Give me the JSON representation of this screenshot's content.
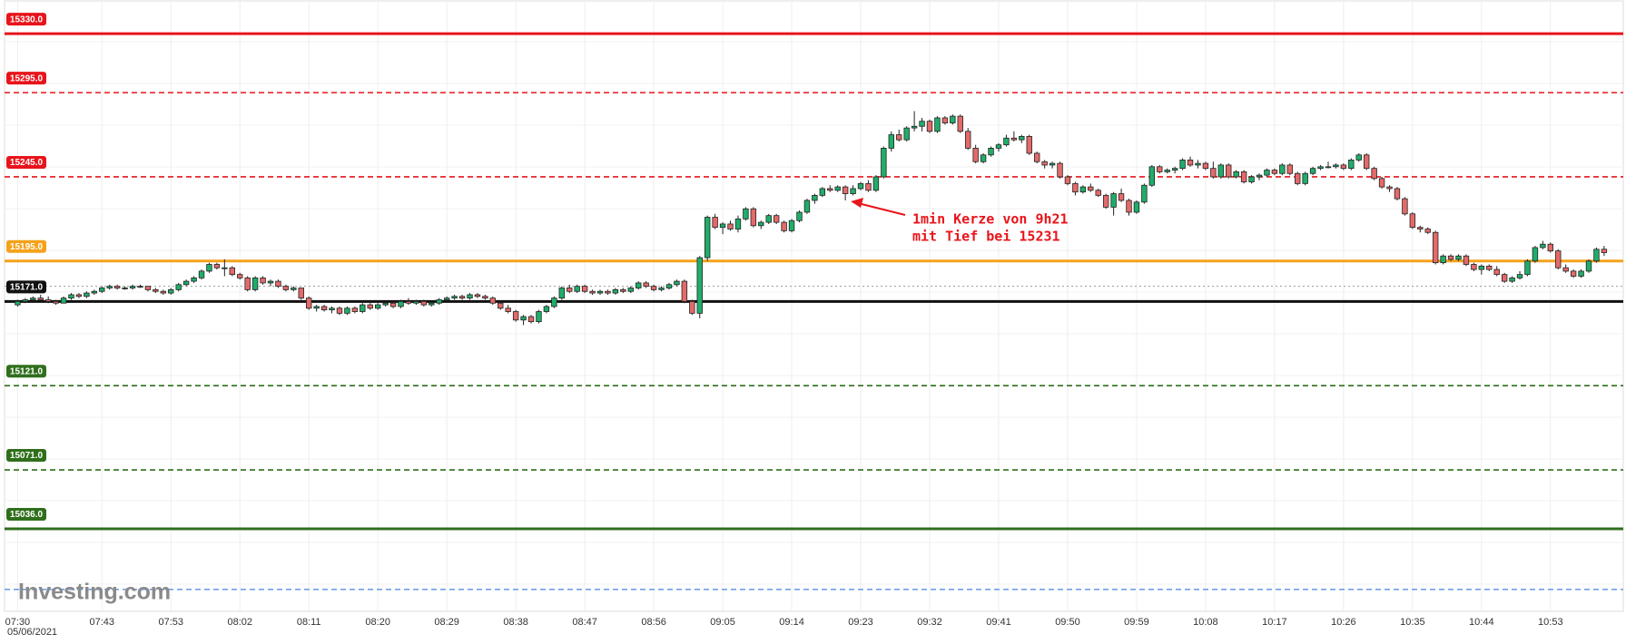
{
  "chart_data": {
    "type": "candlestick",
    "date": "05/06/2021",
    "logo": "Investing.com",
    "annotation": [
      "1min Kerze von 9h21",
      "mit Tief bei 15231"
    ],
    "up_color": "#1fae6a",
    "down_color": "#e46a6a",
    "ylim": [
      14987,
      15350
    ],
    "xlim": [
      -2.3,
      209.5
    ],
    "xticks": [
      {
        "value": 0,
        "label": "07:30"
      },
      {
        "value": 11,
        "label": "07:43"
      },
      {
        "value": 20,
        "label": "07:53"
      },
      {
        "value": 29,
        "label": "08:02"
      },
      {
        "value": 38,
        "label": "08:11"
      },
      {
        "value": 47,
        "label": "08:20"
      },
      {
        "value": 56,
        "label": "08:29"
      },
      {
        "value": 65,
        "label": "08:38"
      },
      {
        "value": 74,
        "label": "08:47"
      },
      {
        "value": 83,
        "label": "08:56"
      },
      {
        "value": 92,
        "label": "09:05"
      },
      {
        "value": 101,
        "label": "09:14"
      },
      {
        "value": 110,
        "label": "09:23"
      },
      {
        "value": 119,
        "label": "09:32"
      },
      {
        "value": 128,
        "label": "09:41"
      },
      {
        "value": 137,
        "label": "09:50"
      },
      {
        "value": 146,
        "label": "09:59"
      },
      {
        "value": 155,
        "label": "10:08"
      },
      {
        "value": 164,
        "label": "10:17"
      },
      {
        "value": 173,
        "label": "10:26"
      },
      {
        "value": 182,
        "label": "10:35"
      },
      {
        "value": 191,
        "label": "10:44"
      },
      {
        "value": 200,
        "label": "10:53"
      }
    ],
    "levels": [
      {
        "value": 15330,
        "label": "15330.0",
        "color": "#e8141b",
        "style": "solid"
      },
      {
        "value": 15295,
        "label": "15295.0",
        "color": "#e8141b",
        "style": "dashed"
      },
      {
        "value": 15245,
        "label": "15245.0",
        "color": "#e8141b",
        "style": "dashed"
      },
      {
        "value": 15195,
        "label": "15195.0",
        "color": "#f5a21b",
        "style": "solid"
      },
      {
        "value": 15180,
        "color": "#999999",
        "style": "dotted"
      },
      {
        "value": 15171,
        "label": "15171.0",
        "color": "#111111",
        "style": "solid"
      },
      {
        "value": 15121,
        "label": "15121.0",
        "color": "#2f6f1c",
        "style": "dashed"
      },
      {
        "value": 15071,
        "label": "15071.0",
        "color": "#2f6f1c",
        "style": "dashed"
      },
      {
        "value": 15036,
        "label": "15036.0",
        "color": "#2f6f1c",
        "style": "solid"
      },
      {
        "value": 15000,
        "color": "#6fa0e8",
        "style": "dashed"
      }
    ],
    "candles": [
      [
        15169,
        15172,
        15168,
        15171
      ],
      [
        15171,
        15173,
        15170,
        15172
      ],
      [
        15172,
        15174,
        15171,
        15173
      ],
      [
        15173,
        15175,
        15172,
        15172
      ],
      [
        15172,
        15174,
        15170,
        15171
      ],
      [
        15171,
        15172,
        15169,
        15170
      ],
      [
        15170,
        15174,
        15170,
        15173
      ],
      [
        15173,
        15176,
        15172,
        15175
      ],
      [
        15175,
        15176,
        15173,
        15174
      ],
      [
        15174,
        15177,
        15173,
        15176
      ],
      [
        15176,
        15178,
        15175,
        15177
      ],
      [
        15177,
        15180,
        15176,
        15179
      ],
      [
        15179,
        15181,
        15178,
        15180
      ],
      [
        15180,
        15181,
        15178,
        15179
      ],
      [
        15179,
        15180,
        15178,
        15179
      ],
      [
        15179,
        15181,
        15178,
        15180
      ],
      [
        15180,
        15181,
        15179,
        15180
      ],
      [
        15180,
        15180,
        15177,
        15178
      ],
      [
        15178,
        15179,
        15176,
        15177
      ],
      [
        15177,
        15178,
        15175,
        15176
      ],
      [
        15176,
        15179,
        15175,
        15178
      ],
      [
        15178,
        15182,
        15177,
        15181
      ],
      [
        15181,
        15184,
        15180,
        15183
      ],
      [
        15183,
        15186,
        15182,
        15185
      ],
      [
        15185,
        15190,
        15184,
        15189
      ],
      [
        15189,
        15194,
        15188,
        15193
      ],
      [
        15193,
        15194,
        15190,
        15191
      ],
      [
        15191,
        15196,
        15186,
        15191
      ],
      [
        15191,
        15192,
        15186,
        15187
      ],
      [
        15187,
        15188,
        15184,
        15185
      ],
      [
        15185,
        15186,
        15177,
        15178
      ],
      [
        15178,
        15186,
        15177,
        15185
      ],
      [
        15185,
        15186,
        15181,
        15182
      ],
      [
        15182,
        15184,
        15180,
        15183
      ],
      [
        15183,
        15184,
        15179,
        15180
      ],
      [
        15180,
        15181,
        15177,
        15178
      ],
      [
        15178,
        15180,
        15177,
        15179
      ],
      [
        15179,
        15179,
        15172,
        15173
      ],
      [
        15173,
        15174,
        15166,
        15167
      ],
      [
        15167,
        15169,
        15165,
        15168
      ],
      [
        15168,
        15169,
        15165,
        15166
      ],
      [
        15166,
        15168,
        15164,
        15167
      ],
      [
        15167,
        15168,
        15163,
        15164
      ],
      [
        15164,
        15168,
        15163,
        15167
      ],
      [
        15167,
        15168,
        15164,
        15165
      ],
      [
        15165,
        15170,
        15164,
        15169
      ],
      [
        15169,
        15170,
        15166,
        15167
      ],
      [
        15167,
        15170,
        15166,
        15169
      ],
      [
        15169,
        15171,
        15168,
        15170
      ],
      [
        15170,
        15171,
        15167,
        15168
      ],
      [
        15168,
        15172,
        15167,
        15171
      ],
      [
        15171,
        15173,
        15169,
        15170
      ],
      [
        15170,
        15172,
        15169,
        15171
      ],
      [
        15171,
        15172,
        15168,
        15169
      ],
      [
        15169,
        15171,
        15168,
        15170
      ],
      [
        15170,
        15173,
        15169,
        15172
      ],
      [
        15172,
        15174,
        15171,
        15173
      ],
      [
        15173,
        15175,
        15172,
        15174
      ],
      [
        15174,
        15175,
        15172,
        15173
      ],
      [
        15173,
        15176,
        15172,
        15175
      ],
      [
        15175,
        15176,
        15173,
        15174
      ],
      [
        15174,
        15175,
        15172,
        15173
      ],
      [
        15173,
        15174,
        15169,
        15170
      ],
      [
        15170,
        15171,
        15166,
        15167
      ],
      [
        15167,
        15169,
        15164,
        15165
      ],
      [
        15165,
        15166,
        15159,
        15160
      ],
      [
        15160,
        15163,
        15157,
        15162
      ],
      [
        15162,
        15163,
        15158,
        15159
      ],
      [
        15159,
        15166,
        15158,
        15165
      ],
      [
        15165,
        15169,
        15164,
        15168
      ],
      [
        15168,
        15174,
        15167,
        15173
      ],
      [
        15173,
        15180,
        15172,
        15179
      ],
      [
        15179,
        15181,
        15176,
        15177
      ],
      [
        15177,
        15181,
        15176,
        15180
      ],
      [
        15180,
        15181,
        15176,
        15177
      ],
      [
        15177,
        15178,
        15175,
        15176
      ],
      [
        15176,
        15178,
        15175,
        15177
      ],
      [
        15177,
        15178,
        15175,
        15176
      ],
      [
        15176,
        15179,
        15175,
        15178
      ],
      [
        15178,
        15179,
        15176,
        15177
      ],
      [
        15177,
        15180,
        15176,
        15179
      ],
      [
        15179,
        15183,
        15178,
        15182
      ],
      [
        15182,
        15183,
        15179,
        15180
      ],
      [
        15180,
        15181,
        15177,
        15178
      ],
      [
        15178,
        15180,
        15177,
        15179
      ],
      [
        15179,
        15182,
        15178,
        15181
      ],
      [
        15181,
        15184,
        15180,
        15183
      ],
      [
        15183,
        15184,
        15170,
        15171
      ],
      [
        15171,
        15172,
        15163,
        15164
      ],
      [
        15164,
        15198,
        15161,
        15197
      ],
      [
        15197,
        15222,
        15195,
        15221
      ],
      [
        15221,
        15223,
        15214,
        15215
      ],
      [
        15215,
        15218,
        15211,
        15217
      ],
      [
        15217,
        15219,
        15213,
        15214
      ],
      [
        15214,
        15222,
        15212,
        15220
      ],
      [
        15220,
        15227,
        15219,
        15226
      ],
      [
        15226,
        15227,
        15215,
        15216
      ],
      [
        15216,
        15219,
        15214,
        15218
      ],
      [
        15218,
        15223,
        15217,
        15222
      ],
      [
        15222,
        15223,
        15217,
        15218
      ],
      [
        15218,
        15219,
        15212,
        15213
      ],
      [
        15213,
        15220,
        15212,
        15219
      ],
      [
        15219,
        15225,
        15218,
        15224
      ],
      [
        15224,
        15232,
        15223,
        15231
      ],
      [
        15231,
        15235,
        15229,
        15234
      ],
      [
        15234,
        15239,
        15233,
        15238
      ],
      [
        15238,
        15240,
        15236,
        15237
      ],
      [
        15237,
        15240,
        15236,
        15239
      ],
      [
        15239,
        15240,
        15231,
        15235
      ],
      [
        15235,
        15240,
        15234,
        15238
      ],
      [
        15238,
        15242,
        15237,
        15241
      ],
      [
        15241,
        15243,
        15236,
        15237
      ],
      [
        15237,
        15246,
        15236,
        15245
      ],
      [
        15245,
        15263,
        15244,
        15262
      ],
      [
        15262,
        15272,
        15260,
        15270
      ],
      [
        15270,
        15273,
        15266,
        15267
      ],
      [
        15267,
        15275,
        15266,
        15274
      ],
      [
        15274,
        15284,
        15272,
        15275
      ],
      [
        15275,
        15280,
        15272,
        15278
      ],
      [
        15278,
        15279,
        15271,
        15272
      ],
      [
        15272,
        15281,
        15271,
        15280
      ],
      [
        15280,
        15281,
        15276,
        15277
      ],
      [
        15277,
        15282,
        15276,
        15281
      ],
      [
        15281,
        15282,
        15271,
        15272
      ],
      [
        15272,
        15274,
        15261,
        15262
      ],
      [
        15262,
        15264,
        15253,
        15254
      ],
      [
        15254,
        15259,
        15253,
        15258
      ],
      [
        15258,
        15263,
        15257,
        15262
      ],
      [
        15262,
        15265,
        15260,
        15264
      ],
      [
        15264,
        15270,
        15263,
        15268
      ],
      [
        15268,
        15272,
        15266,
        15267
      ],
      [
        15267,
        15270,
        15265,
        15269
      ],
      [
        15269,
        15270,
        15258,
        15259
      ],
      [
        15259,
        15260,
        15253,
        15254
      ],
      [
        15254,
        15255,
        15250,
        15252
      ],
      [
        15252,
        15254,
        15250,
        15253
      ],
      [
        15253,
        15254,
        15244,
        15245
      ],
      [
        15245,
        15246,
        15240,
        15241
      ],
      [
        15241,
        15242,
        15234,
        15236
      ],
      [
        15236,
        15240,
        15235,
        15239
      ],
      [
        15239,
        15241,
        15236,
        15237
      ],
      [
        15237,
        15238,
        15233,
        15234
      ],
      [
        15234,
        15235,
        15226,
        15227
      ],
      [
        15227,
        15236,
        15222,
        15235
      ],
      [
        15235,
        15238,
        15230,
        15231
      ],
      [
        15231,
        15232,
        15222,
        15224
      ],
      [
        15224,
        15231,
        15223,
        15230
      ],
      [
        15230,
        15241,
        15229,
        15240
      ],
      [
        15240,
        15252,
        15239,
        15251
      ],
      [
        15251,
        15252,
        15247,
        15248
      ],
      [
        15248,
        15250,
        15247,
        15249
      ],
      [
        15249,
        15251,
        15247,
        15250
      ],
      [
        15250,
        15256,
        15249,
        15255
      ],
      [
        15255,
        15257,
        15251,
        15252
      ],
      [
        15252,
        15255,
        15250,
        15253
      ],
      [
        15253,
        15254,
        15249,
        15250
      ],
      [
        15250,
        15254,
        15244,
        15245
      ],
      [
        15245,
        15253,
        15244,
        15252
      ],
      [
        15252,
        15253,
        15244,
        15245
      ],
      [
        15245,
        15249,
        15244,
        15248
      ],
      [
        15248,
        15249,
        15241,
        15242
      ],
      [
        15242,
        15246,
        15241,
        15245
      ],
      [
        15245,
        15247,
        15243,
        15246
      ],
      [
        15246,
        15250,
        15245,
        15249
      ],
      [
        15249,
        15250,
        15246,
        15247
      ],
      [
        15247,
        15253,
        15246,
        15252
      ],
      [
        15252,
        15253,
        15246,
        15247
      ],
      [
        15247,
        15248,
        15240,
        15241
      ],
      [
        15241,
        15248,
        15240,
        15247
      ],
      [
        15247,
        15251,
        15246,
        15250
      ],
      [
        15250,
        15252,
        15249,
        15251
      ],
      [
        15251,
        15254,
        15250,
        15251
      ],
      [
        15251,
        15253,
        15250,
        15252
      ],
      [
        15252,
        15253,
        15249,
        15250
      ],
      [
        15250,
        15256,
        15249,
        15255
      ],
      [
        15255,
        15259,
        15254,
        15258
      ],
      [
        15258,
        15259,
        15249,
        15250
      ],
      [
        15250,
        15251,
        15243,
        15244
      ],
      [
        15244,
        15245,
        15238,
        15239
      ],
      [
        15239,
        15240,
        15236,
        15238
      ],
      [
        15238,
        15239,
        15231,
        15232
      ],
      [
        15232,
        15233,
        15222,
        15223
      ],
      [
        15223,
        15224,
        15214,
        15215
      ],
      [
        15215,
        15216,
        15212,
        15214
      ],
      [
        15214,
        15215,
        15211,
        15212
      ],
      [
        15212,
        15213,
        15193,
        15194
      ],
      [
        15194,
        15199,
        15193,
        15198
      ],
      [
        15198,
        15199,
        15195,
        15196
      ],
      [
        15196,
        15199,
        15195,
        15198
      ],
      [
        15198,
        15199,
        15192,
        15193
      ],
      [
        15193,
        15194,
        15189,
        15190
      ],
      [
        15190,
        15193,
        15187,
        15192
      ],
      [
        15192,
        15193,
        15189,
        15190
      ],
      [
        15190,
        15192,
        15186,
        15187
      ],
      [
        15187,
        15188,
        15182,
        15183
      ],
      [
        15183,
        15186,
        15182,
        15185
      ],
      [
        15185,
        15189,
        15184,
        15187
      ],
      [
        15187,
        15196,
        15186,
        15195
      ],
      [
        15195,
        15204,
        15194,
        15203
      ],
      [
        15203,
        15207,
        15202,
        15205
      ],
      [
        15205,
        15206,
        15200,
        15201
      ],
      [
        15201,
        15202,
        15190,
        15191
      ],
      [
        15191,
        15193,
        15188,
        15189
      ],
      [
        15189,
        15190,
        15185,
        15186
      ],
      [
        15186,
        15190,
        15185,
        15189
      ],
      [
        15189,
        15196,
        15188,
        15195
      ],
      [
        15195,
        15203,
        15194,
        15202
      ],
      [
        15202,
        15204,
        15198,
        15200
      ]
    ]
  }
}
